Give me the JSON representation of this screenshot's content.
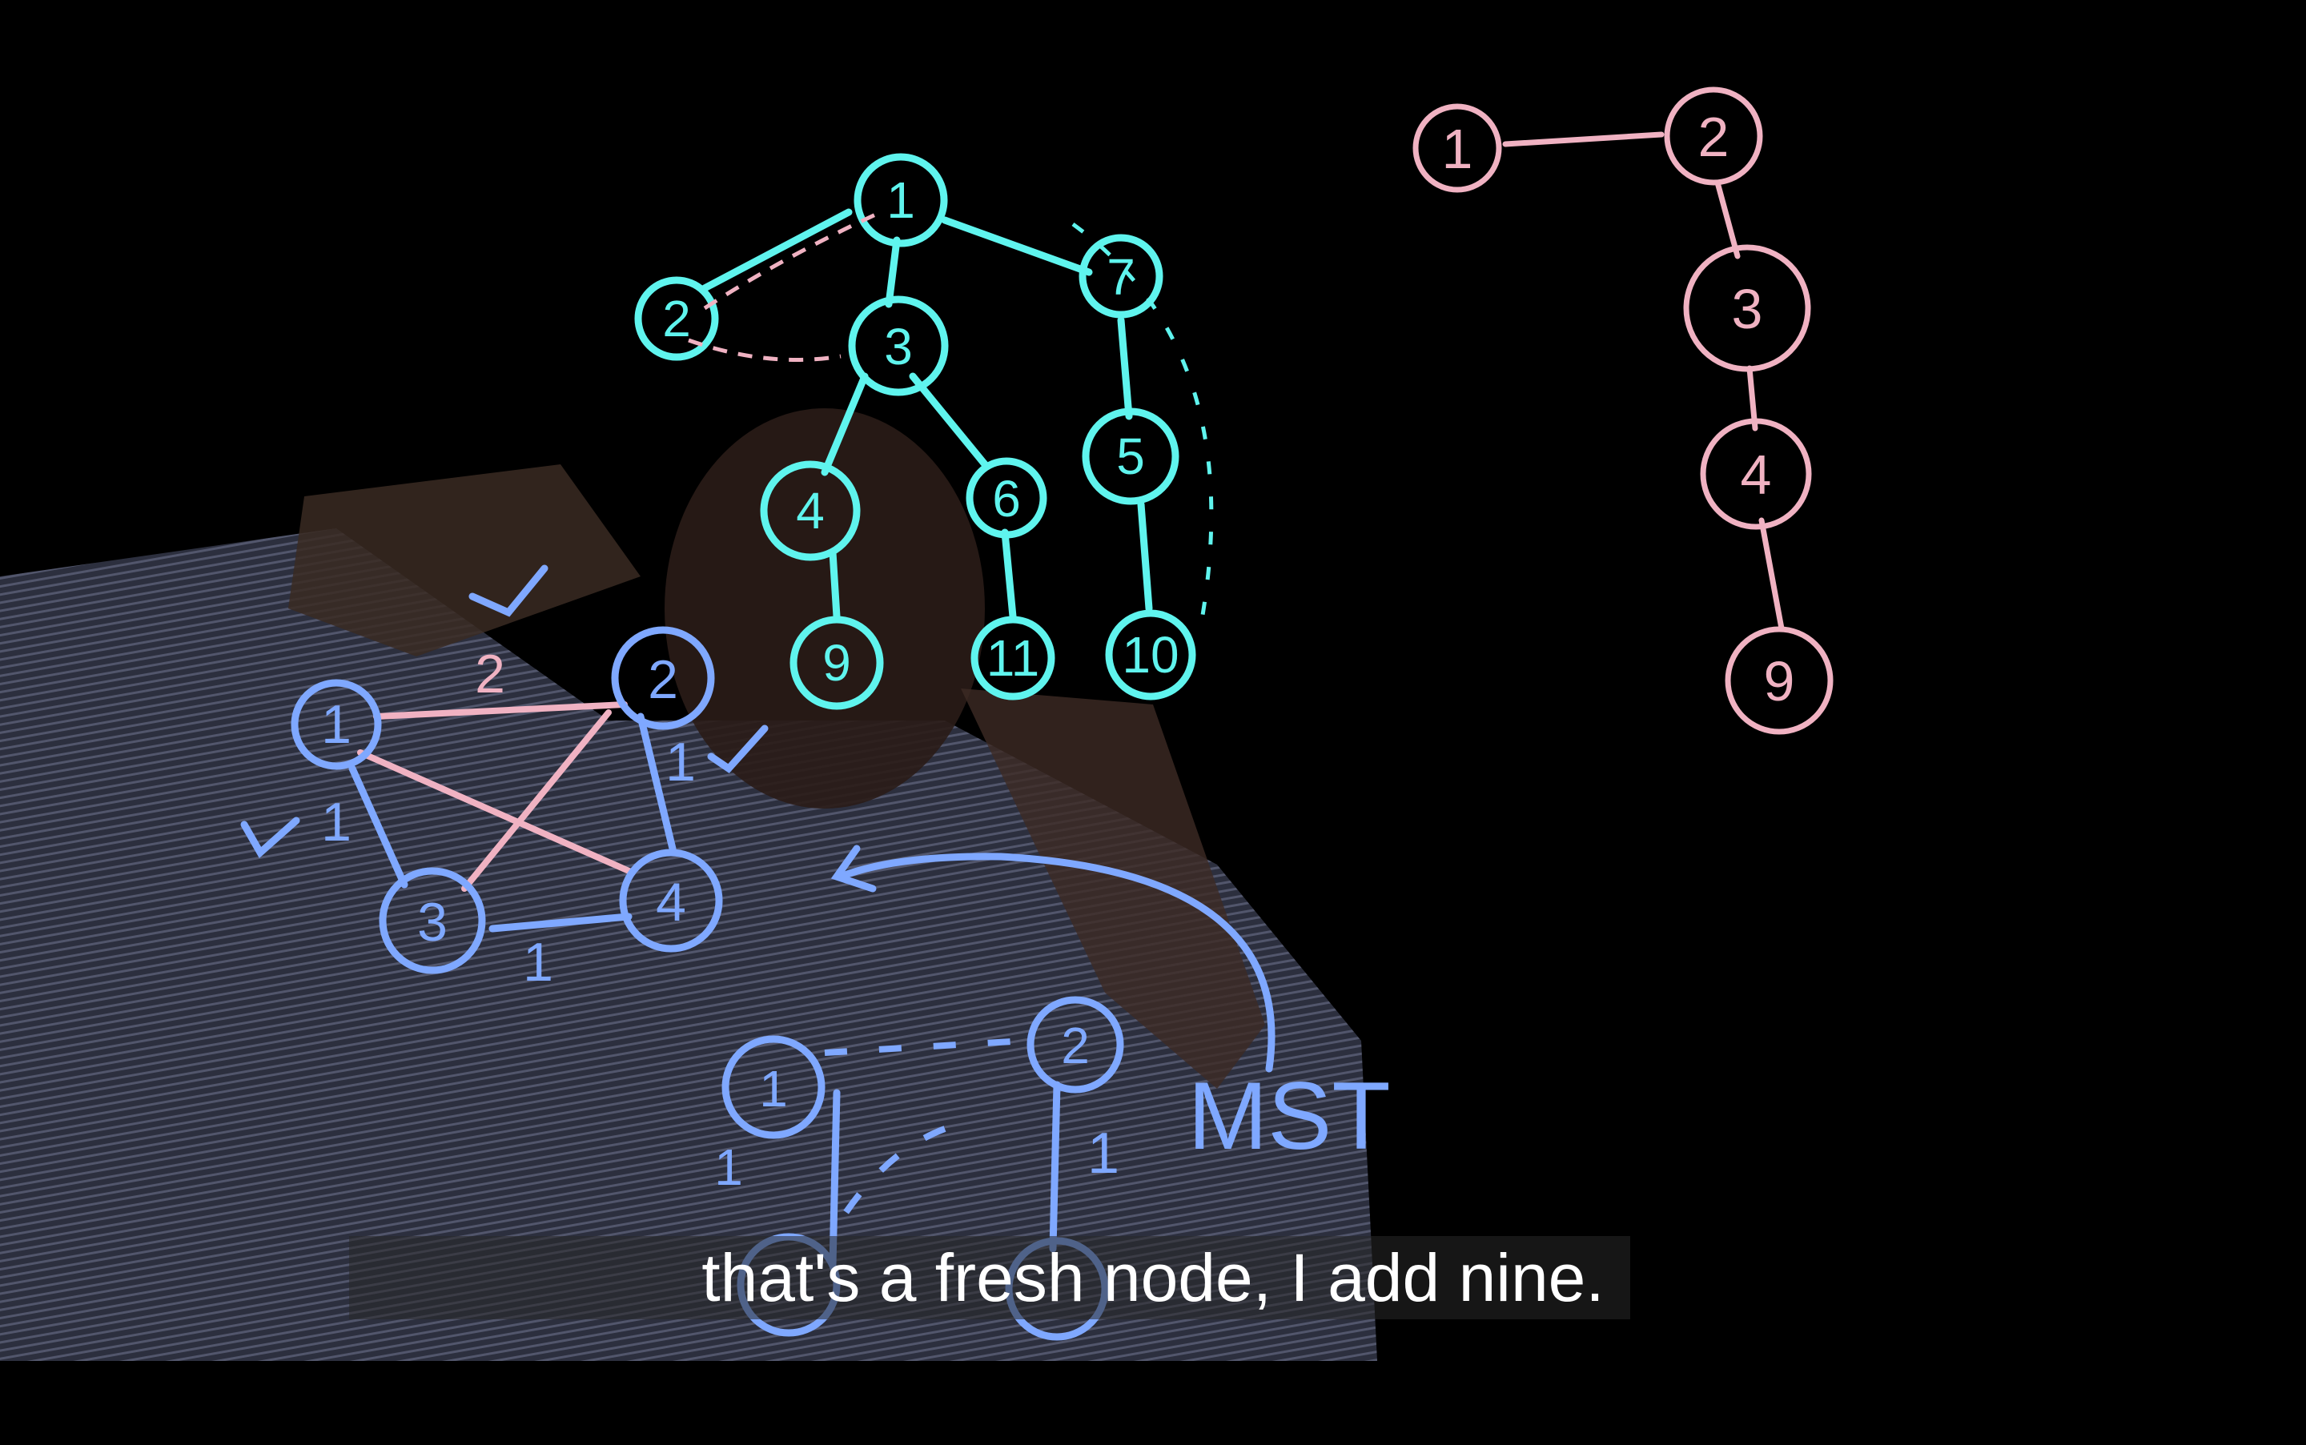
{
  "colors": {
    "background": "#000000",
    "cyan_ink": "#5ff4ee",
    "blue_ink": "#7fa8ff",
    "pink_ink": "#f0b2c2",
    "caption_text": "#ffffff"
  },
  "tree_graph": {
    "nodes": [
      "1",
      "2",
      "3",
      "7",
      "4",
      "6",
      "5",
      "9",
      "11",
      "10"
    ]
  },
  "small_graph": {
    "nodes": [
      "1",
      "2",
      "3",
      "4"
    ],
    "edge_labels": [
      "2",
      "1",
      "1",
      "1"
    ]
  },
  "mst_graph": {
    "nodes": [
      "1",
      "2"
    ],
    "edge_labels": [
      "1",
      "1"
    ],
    "label": "MST"
  },
  "path_graph": {
    "nodes": [
      "1",
      "2",
      "3",
      "4",
      "9"
    ]
  },
  "caption": "that's a fresh node, I add nine."
}
